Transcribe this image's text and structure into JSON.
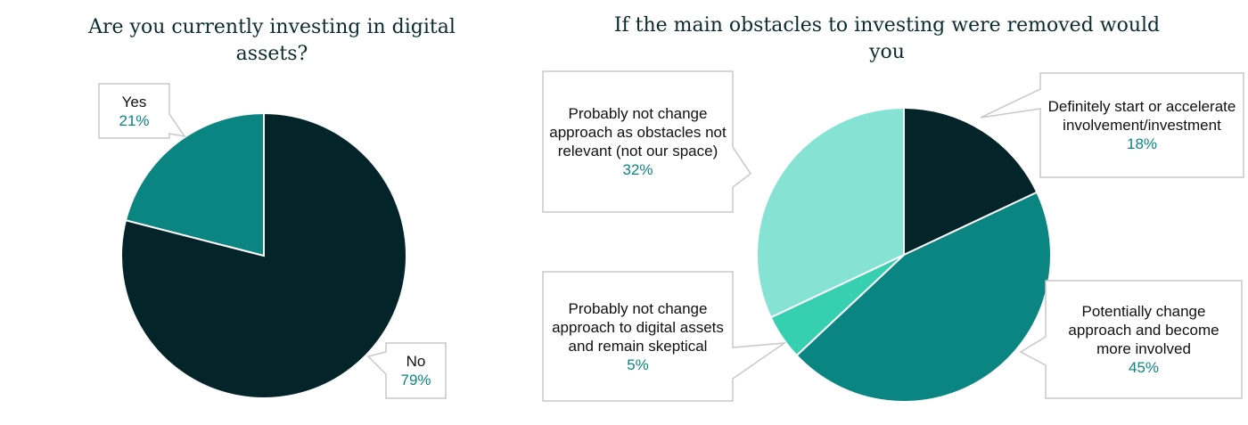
{
  "chart_data": [
    {
      "type": "pie",
      "title": "Are you currently investing in digital assets?",
      "categories": [
        "No",
        "Yes"
      ],
      "values": [
        79,
        21
      ],
      "value_labels": [
        "79%",
        "21%"
      ],
      "colors": [
        "#03252a",
        "#0a8582"
      ]
    },
    {
      "type": "pie",
      "title": "If the main obstacles to investing were removed would you",
      "categories": [
        "Definitely start or accelerate involvement/investment",
        "Potentially change approach and become more involved",
        "Probably not change approach to digital assets and remain skeptical",
        "Probably not change approach as obstacles not relevant (not our space)"
      ],
      "values": [
        18,
        45,
        5,
        32
      ],
      "value_labels": [
        "18%",
        "45%",
        "5%",
        "32%"
      ],
      "colors": [
        "#03252a",
        "#0a8582",
        "#36d0b0",
        "#86e3d3"
      ]
    }
  ]
}
